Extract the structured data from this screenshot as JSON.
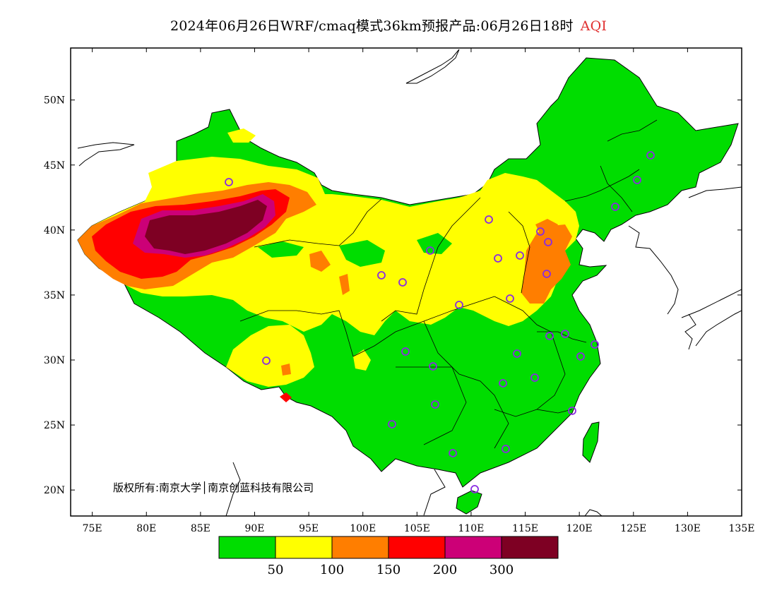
{
  "title": {
    "main": "2024年06月26日WRF/cmaq模式36km预报产品:06月26日18时",
    "variable": "AQI"
  },
  "map": {
    "lon_range": [
      73,
      135
    ],
    "lat_range": [
      18,
      54
    ],
    "x_ticks": [
      "75E",
      "80E",
      "85E",
      "90E",
      "95E",
      "100E",
      "105E",
      "110E",
      "115E",
      "120E",
      "125E",
      "130E",
      "135E"
    ],
    "y_ticks": [
      "20N",
      "25N",
      "30N",
      "35N",
      "40N",
      "45N",
      "50N"
    ],
    "copyright": "版权所有:南京大学│南京创蓝科技有限公司"
  },
  "legend": {
    "colors": [
      "#00dd00",
      "#ffff00",
      "#ff7e00",
      "#ff0000",
      "#cc0077",
      "#7e0023"
    ],
    "labels": [
      "50",
      "100",
      "150",
      "200",
      "300"
    ]
  },
  "stations_color": "#8a2be2"
}
